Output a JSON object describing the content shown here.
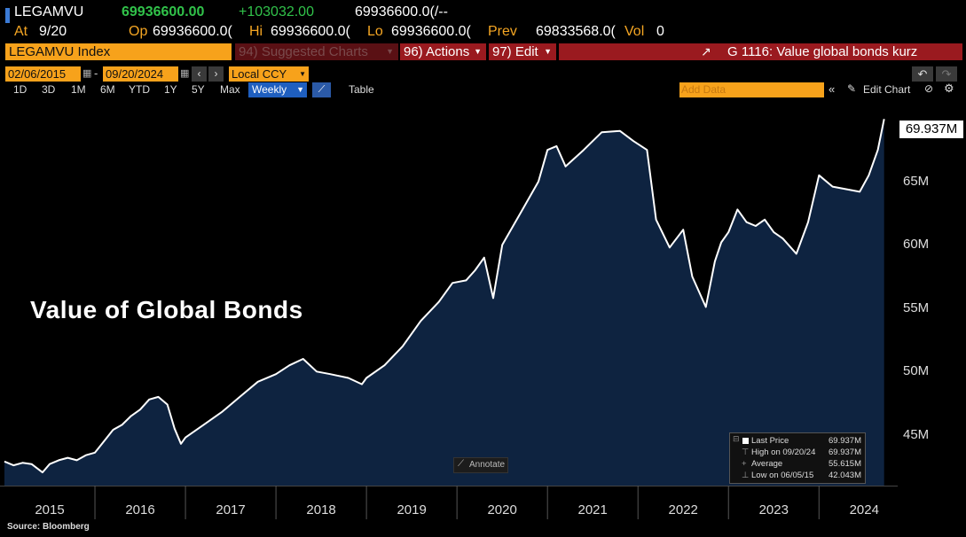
{
  "header": {
    "ticker": "LEGAMVU",
    "last": "69936600.00",
    "change": "+103032.00",
    "bidask": "69936600.0(/--",
    "at_label": "At",
    "at_value": "9/20",
    "op_label": "Op",
    "op_value": "69936600.0(",
    "hi_label": "Hi",
    "hi_value": "69936600.0(",
    "lo_label": "Lo",
    "lo_value": "69936600.0(",
    "prev_label": "Prev",
    "prev_value": "69833568.0(",
    "vol_label": "Vol",
    "vol_value": "0"
  },
  "toolbar": {
    "security": "LEGAMVU Index",
    "suggested": "94) Suggested Charts",
    "actions": "96) Actions",
    "edit": "97) Edit",
    "chart_title": "G 1116: Value global bonds kurz",
    "start_date": "02/06/2015",
    "end_date": "09/20/2024",
    "currency": "Local CCY",
    "add_data_placeholder": "Add Data",
    "edit_chart": "Edit Chart",
    "table": "Table",
    "annotate": "Annotate"
  },
  "range_tabs": [
    "1D",
    "3D",
    "1M",
    "6M",
    "YTD",
    "1Y",
    "5Y",
    "Max"
  ],
  "frequency": "Weekly",
  "legend": {
    "last_price_label": "Last Price",
    "last_price_value": "69.937M",
    "high_label": "High on 09/20/24",
    "high_value": "69.937M",
    "average_label": "Average",
    "average_value": "55.615M",
    "low_label": "Low on 06/05/15",
    "low_value": "42.043M"
  },
  "overlay_title": "Value of Global Bonds",
  "last_value_label": "69.937M",
  "source": "Source: Bloomberg",
  "colors": {
    "line": "#ffffff",
    "area": "#0e2340",
    "background": "#000000",
    "accent_orange": "#f7a21b",
    "accent_red": "#9a1a1f",
    "up_green": "#31c24a"
  },
  "chart_data": {
    "type": "area",
    "title": "",
    "xlabel": "",
    "ylabel": "",
    "ylim": [
      41000000,
      71500000
    ],
    "x_tick_labels": [
      "2015",
      "2016",
      "2017",
      "2018",
      "2019",
      "2020",
      "2021",
      "2022",
      "2023",
      "2024"
    ],
    "y_tick_values": [
      45000000,
      50000000,
      55000000,
      60000000,
      65000000
    ],
    "y_tick_labels": [
      "45M",
      "50M",
      "55M",
      "60M",
      "65M"
    ],
    "series": [
      {
        "x": [
          2015.0,
          2015.1,
          2015.2,
          2015.3,
          2015.42,
          2015.5,
          2015.6,
          2015.7,
          2015.8,
          2015.9,
          2016.0,
          2016.1,
          2016.2,
          2016.3,
          2016.4,
          2016.5,
          2016.6,
          2016.7,
          2016.8,
          2016.88,
          2016.95,
          2017.0,
          2017.2,
          2017.4,
          2017.6,
          2017.8,
          2018.0,
          2018.15,
          2018.3,
          2018.45,
          2018.6,
          2018.8,
          2018.95,
          2019.0,
          2019.2,
          2019.4,
          2019.6,
          2019.8,
          2019.95,
          2020.1,
          2020.2,
          2020.3,
          2020.4,
          2020.5,
          2020.7,
          2020.9,
          2021.0,
          2021.1,
          2021.2,
          2021.4,
          2021.6,
          2021.8,
          2021.95,
          2022.1,
          2022.2,
          2022.35,
          2022.5,
          2022.6,
          2022.75,
          2022.85,
          2022.92,
          2023.0,
          2023.1,
          2023.2,
          2023.3,
          2023.4,
          2023.5,
          2023.6,
          2023.75,
          2023.88,
          2024.0,
          2024.15,
          2024.3,
          2024.45,
          2024.55,
          2024.65,
          2024.72
        ],
        "values": [
          42900000,
          42600000,
          42800000,
          42700000,
          42043000,
          42700000,
          43000000,
          43200000,
          43000000,
          43400000,
          43600000,
          44500000,
          45400000,
          45800000,
          46500000,
          47000000,
          47800000,
          48000000,
          47400000,
          45500000,
          44300000,
          44800000,
          45800000,
          46800000,
          48000000,
          49200000,
          49800000,
          50500000,
          51000000,
          50000000,
          49800000,
          49500000,
          49000000,
          49500000,
          50500000,
          52000000,
          54000000,
          55500000,
          57000000,
          57200000,
          58000000,
          59000000,
          55800000,
          60000000,
          62500000,
          65000000,
          67500000,
          67800000,
          66200000,
          67500000,
          68900000,
          69000000,
          68200000,
          67500000,
          62000000,
          59800000,
          61200000,
          57500000,
          55100000,
          58700000,
          60200000,
          61000000,
          62800000,
          61800000,
          61500000,
          62000000,
          61000000,
          60500000,
          59300000,
          61800000,
          65500000,
          64600000,
          64400000,
          64200000,
          65500000,
          67500000,
          69937000
        ]
      }
    ],
    "last_value": 69937000,
    "high": 69937000,
    "high_date": "09/20/24",
    "average": 55615000,
    "low": 42043000,
    "low_date": "06/05/15",
    "grid": false,
    "legend_position": "bottom-right"
  }
}
